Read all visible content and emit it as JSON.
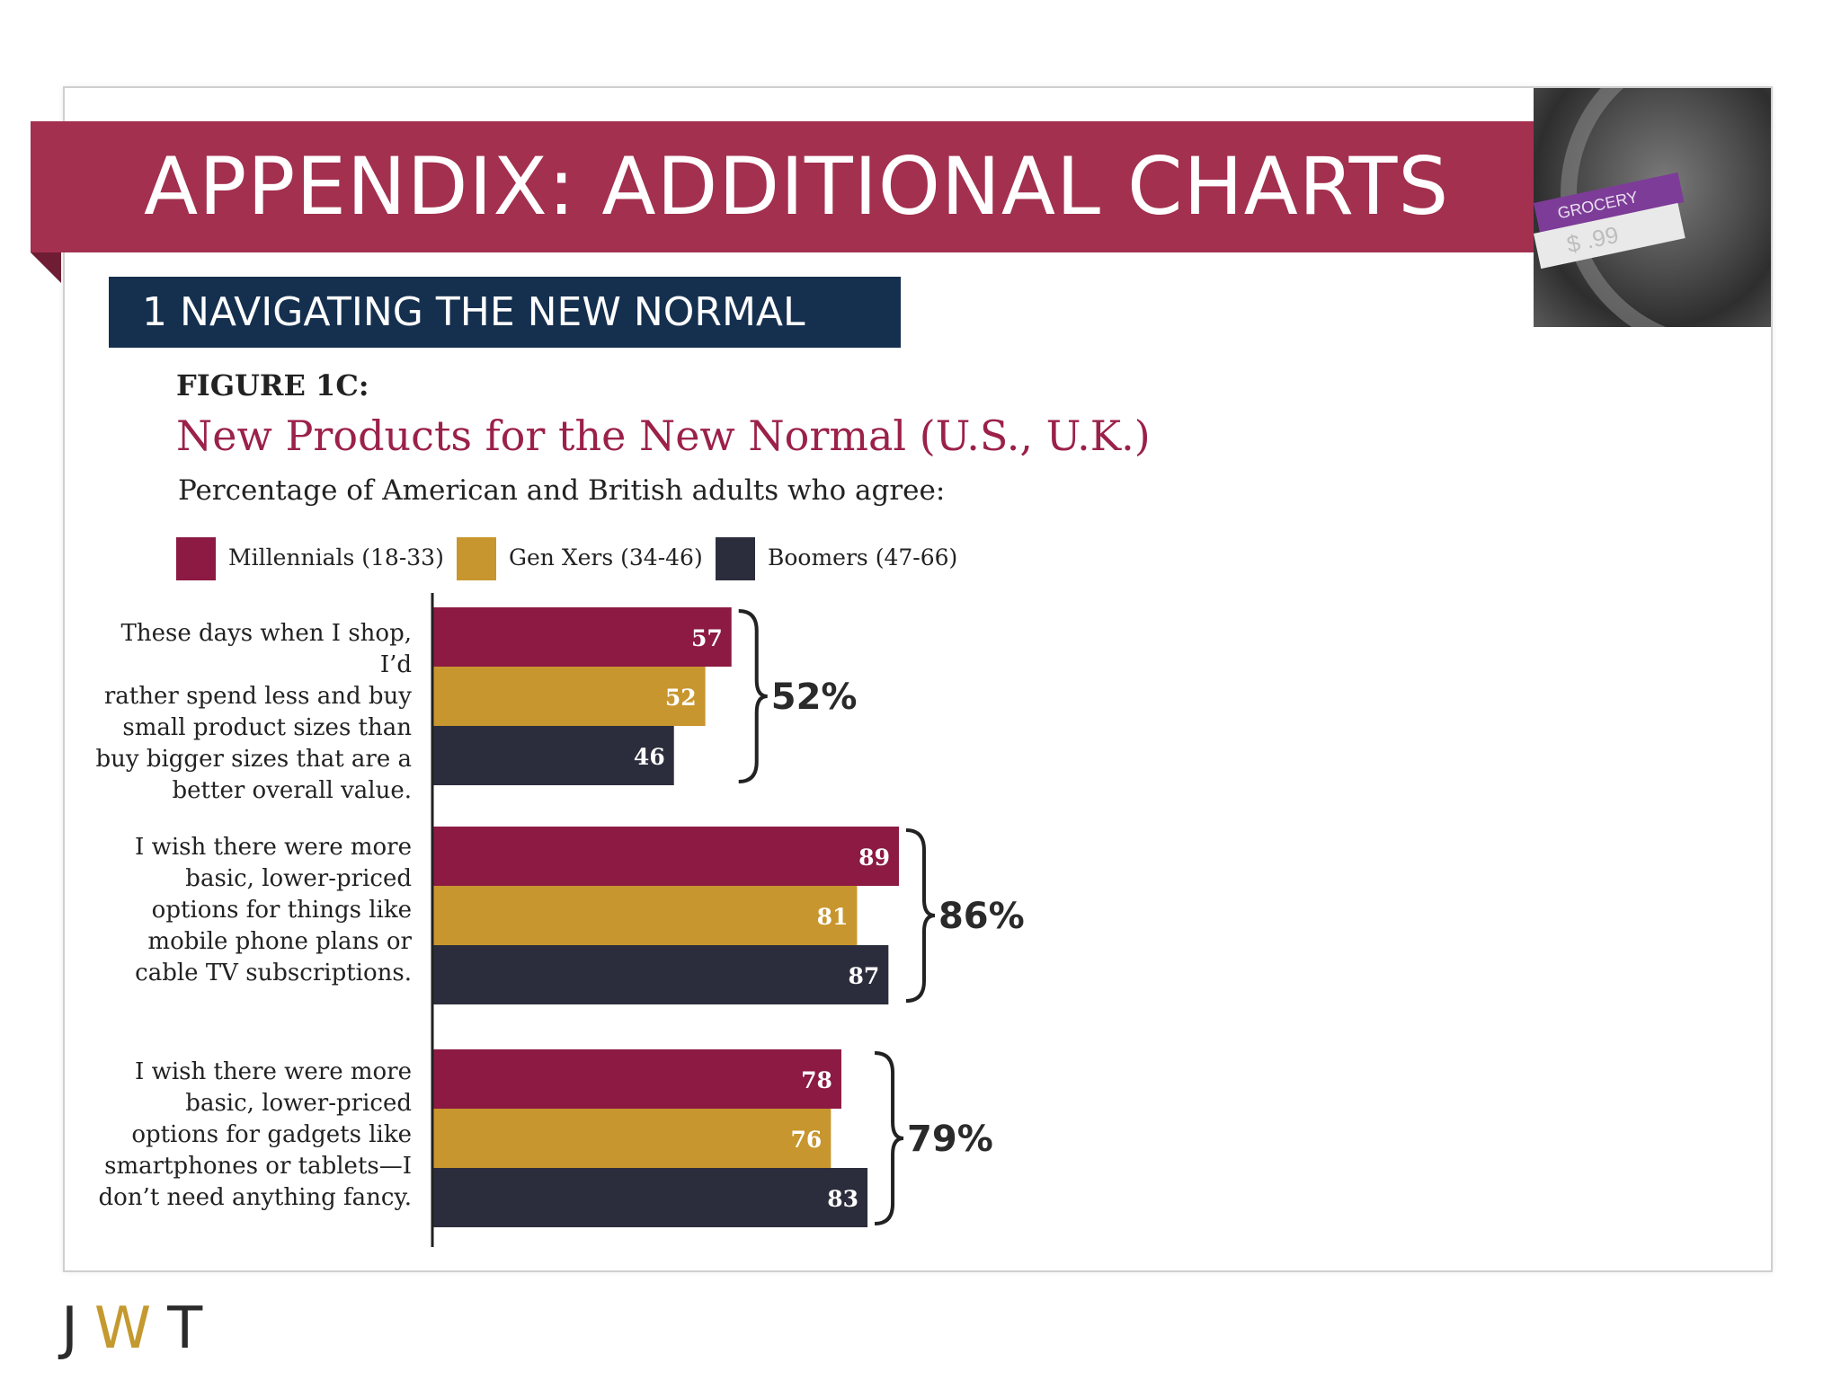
{
  "slide": {
    "title": "APPENDIX: ADDITIONAL CHARTS",
    "section": "1  NAVIGATING THE NEW NORMAL",
    "photo": {
      "tag_top": "GROCERY",
      "tag_bottom": "$ .99"
    }
  },
  "figure": {
    "label": "FIGURE 1C:",
    "title": "New Products for the New Normal (U.S., U.K.)",
    "subtitle": "Percentage of American and British adults who agree:"
  },
  "legend": [
    {
      "label": "Millennials (18-33)",
      "color": "#8c1a43"
    },
    {
      "label": "Gen Xers (34-46)",
      "color": "#c8962e"
    },
    {
      "label": "Boomers (47-66)",
      "color": "#2c2d3c"
    }
  ],
  "chart_data": {
    "type": "bar",
    "orientation": "horizontal",
    "categories": [
      "These days when I shop, I’d\nrather spend less and buy\nsmall product sizes than\nbuy bigger sizes that are a\nbetter overall value.",
      "I wish there were more\nbasic, lower-priced\noptions for things like\nmobile phone plans or\ncable TV subscriptions.",
      "I wish there were more\nbasic, lower-priced\noptions for gadgets like\nsmartphones or tablets—I\ndon’t need anything fancy."
    ],
    "series": [
      {
        "name": "Millennials (18-33)",
        "values": [
          57,
          89,
          78
        ],
        "color": "#8c1a43"
      },
      {
        "name": "Gen Xers (34-46)",
        "values": [
          52,
          81,
          76
        ],
        "color": "#c8962e"
      },
      {
        "name": "Boomers (47-66)",
        "values": [
          46,
          87,
          83
        ],
        "color": "#2c2d3c"
      }
    ],
    "totals": [
      "52%",
      "86%",
      "79%"
    ],
    "xlim": [
      0,
      100
    ],
    "data_labels": true,
    "grid": false
  },
  "logo": {
    "j": "J",
    "w": "W",
    "t": "T"
  }
}
